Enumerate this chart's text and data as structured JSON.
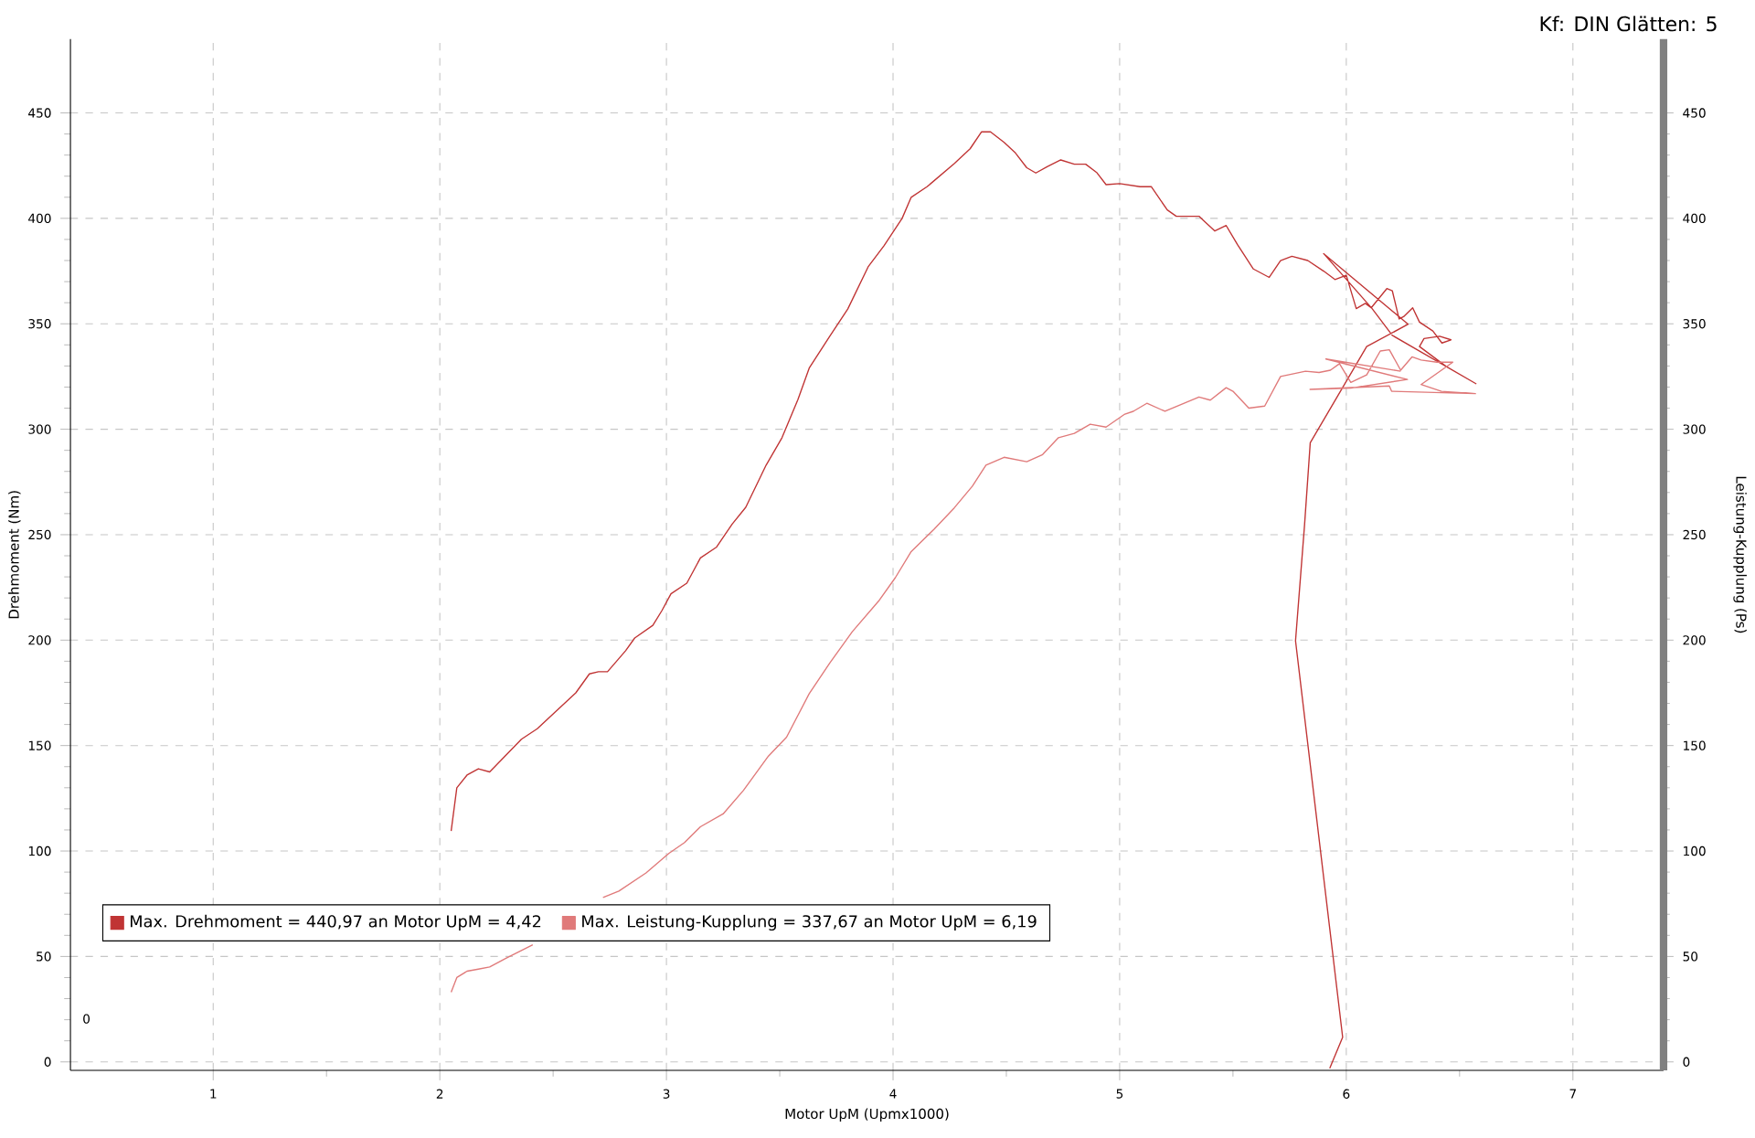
{
  "chart_data": {
    "type": "line",
    "xlabel": "Motor UpM (Upmx1000)",
    "ylabel": "Drehmoment (Nm)",
    "y2label": "Leistung-Kupplung (Ps)",
    "annotations": [
      "Kf: DIN Glätten: 5",
      "0"
    ],
    "xlim": [
      0.37,
      7.4
    ],
    "xticks": [
      1,
      2,
      3,
      4,
      5,
      6,
      7
    ],
    "ylim": [
      -4,
      485
    ],
    "yticks": [
      0,
      50,
      100,
      150,
      200,
      250,
      300,
      350,
      400,
      450
    ],
    "y2lim": [
      -4,
      485
    ],
    "y2ticks": [
      0,
      50,
      100,
      150,
      200,
      250,
      300,
      350,
      400,
      450
    ],
    "grid": true,
    "legend": "bottom left",
    "marker": "none",
    "line_style": "solid",
    "series": [
      {
        "name": "Max. Drehmoment = 440,97 an Motor UpM = 4,42",
        "color": "#c03434",
        "x": [
          2.05,
          2.075,
          2.12,
          2.17,
          2.22,
          2.27,
          2.36,
          2.43,
          2.51,
          2.6,
          2.66,
          2.7,
          2.74,
          2.82,
          2.86,
          2.94,
          2.98,
          3.02,
          3.09,
          3.15,
          3.22,
          3.29,
          3.35,
          3.44,
          3.51,
          3.58,
          3.63,
          3.72,
          3.8,
          3.89,
          3.96,
          4.04,
          4.08,
          4.15,
          4.27,
          4.34,
          4.39,
          4.43,
          4.49,
          4.54,
          4.59,
          4.63,
          4.68,
          4.74,
          4.8,
          4.85,
          4.9,
          4.94,
          5.0,
          5.09,
          5.14,
          5.21,
          5.25,
          5.35,
          5.37,
          5.42,
          5.47,
          5.52,
          5.59,
          5.66,
          5.71,
          5.76,
          5.83,
          5.9,
          5.95,
          6.0,
          6.044,
          6.084,
          6.11,
          6.179,
          6.203,
          6.233,
          6.253,
          6.293,
          6.323,
          6.382,
          6.422,
          6.462,
          6.412,
          6.343,
          6.323,
          6.442,
          6.572,
          6.203,
          6.114,
          5.9,
          6.273,
          6.09,
          5.841,
          5.816,
          5.776,
          5.984,
          5.927
        ],
        "values": [
          109.5,
          130,
          136,
          139,
          137.5,
          143,
          153,
          158,
          166,
          175,
          184,
          185,
          185,
          195,
          201,
          207,
          214,
          222,
          227,
          239,
          244,
          255,
          263,
          283,
          296,
          314,
          329,
          344,
          357,
          377,
          387,
          400,
          410,
          415,
          426,
          433,
          441,
          441,
          436,
          431,
          424,
          421.5,
          424.5,
          427.7,
          425.7,
          425.7,
          421.6,
          416,
          416.5,
          415,
          415,
          404,
          401,
          401,
          399,
          394,
          396.6,
          387.5,
          376,
          372,
          380,
          382,
          380,
          375,
          371,
          373,
          357.2,
          359.7,
          357.6,
          366.7,
          365.7,
          352.3,
          353.4,
          357.6,
          350.8,
          346.6,
          340.9,
          342.4,
          344.1,
          343,
          339.2,
          329.7,
          321.6,
          344.5,
          357.2,
          383.3,
          349.8,
          339.2,
          293.6,
          254.8,
          199.7,
          11.7,
          -3
        ]
      },
      {
        "name": "Max. Leistung-Kupplung = 337,67 an Motor UpM = 6,19",
        "color": "#e07a7a",
        "axis": "y2",
        "x": [
          2.05,
          2.075,
          2.12,
          2.17,
          2.22,
          2.29,
          2.41,
          2.55,
          2.72,
          2.79,
          2.91,
          3.01,
          3.08,
          3.15,
          3.25,
          3.34,
          3.45,
          3.53,
          3.63,
          3.72,
          3.82,
          3.94,
          4.01,
          4.08,
          4.18,
          4.27,
          4.35,
          4.41,
          4.49,
          4.59,
          4.66,
          4.73,
          4.8,
          4.87,
          4.94,
          5.02,
          5.06,
          5.12,
          5.2,
          5.35,
          5.4,
          5.47,
          5.5,
          5.57,
          5.64,
          5.71,
          5.82,
          5.88,
          5.93,
          5.97,
          6.02,
          6.09,
          6.15,
          6.19,
          6.24,
          6.29,
          6.33,
          6.4,
          6.47,
          6.33,
          6.42,
          6.57,
          6.2,
          6.19,
          5.84,
          6.02,
          6.27,
          5.91,
          6.24
        ],
        "values": [
          33,
          40,
          43,
          44,
          45,
          49,
          55.5,
          null,
          78,
          81,
          89.6,
          98.8,
          104,
          111.5,
          117.6,
          128.8,
          145,
          154,
          174.6,
          189,
          204,
          219,
          229.6,
          242,
          252.5,
          262.7,
          273,
          283,
          286.7,
          284.6,
          288,
          296,
          298,
          302.4,
          301,
          307,
          308.5,
          312.3,
          308.5,
          315.3,
          313.8,
          319.7,
          318,
          310,
          311,
          325,
          327.5,
          326.9,
          328,
          331.1,
          322.2,
          325.8,
          337.1,
          337.7,
          328,
          334.3,
          332.8,
          331.8,
          331.8,
          321.2,
          318,
          316.9,
          318,
          320.5,
          318.9,
          319.5,
          323.6,
          333.3,
          327.5
        ]
      }
    ]
  }
}
